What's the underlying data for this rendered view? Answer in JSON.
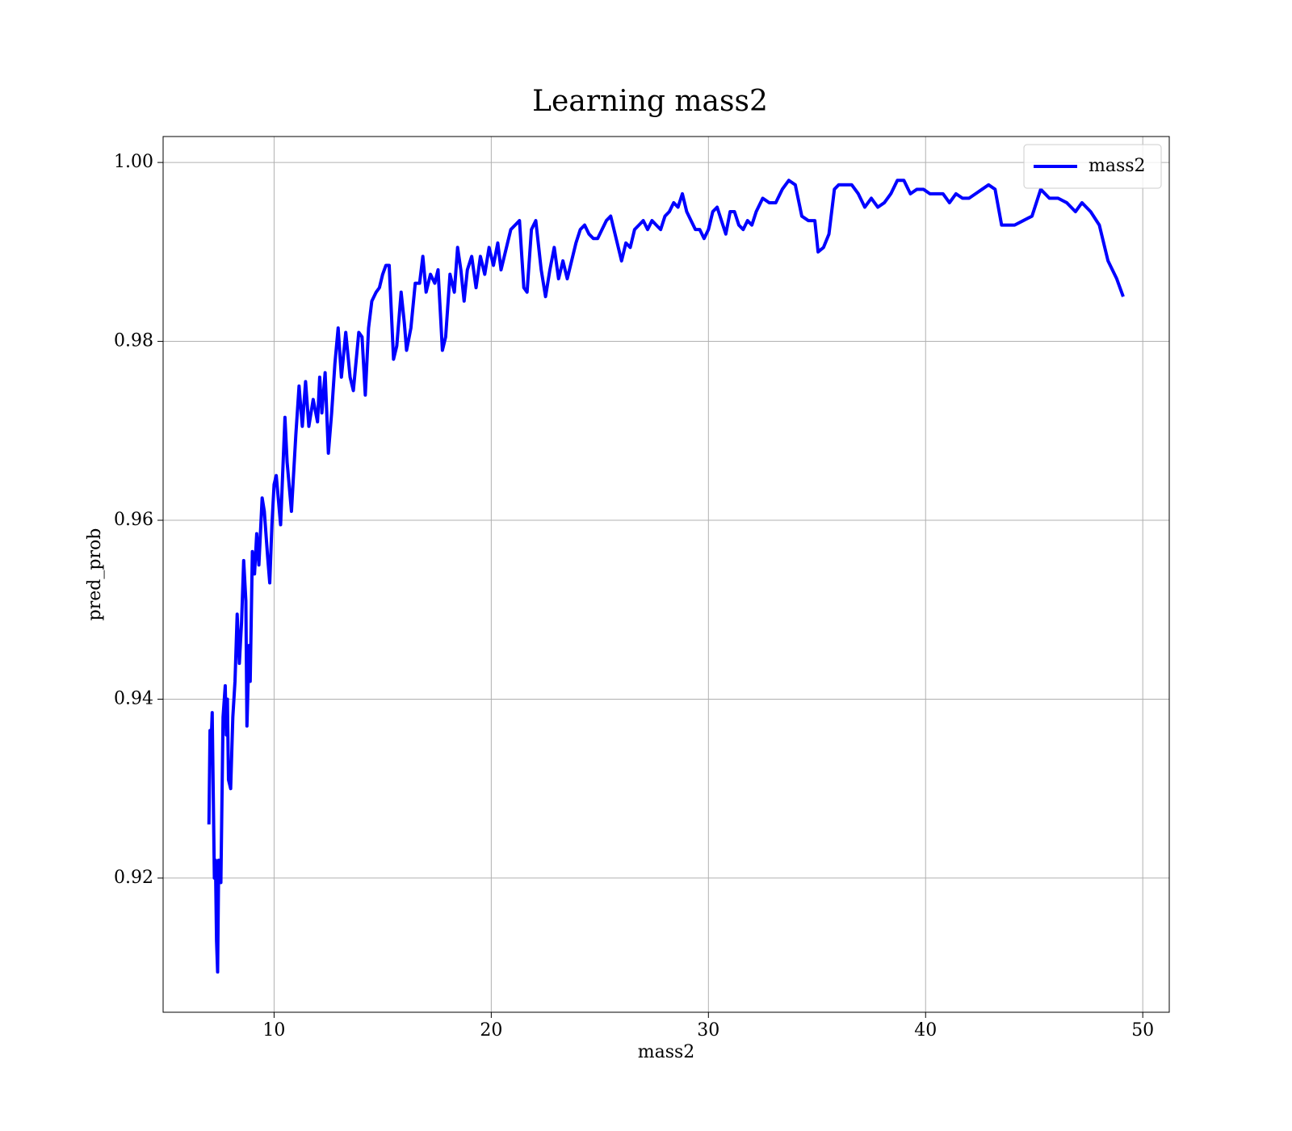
{
  "chart_data": {
    "type": "line",
    "title": "Learning mass2",
    "xlabel": "mass2",
    "ylabel": "pred_prob",
    "xlim": [
      4.89,
      51.22
    ],
    "ylim": [
      0.905,
      1.0029
    ],
    "xticks": [
      10,
      20,
      30,
      40,
      50
    ],
    "yticks": [
      {
        "value": 0.92,
        "label": "0.92"
      },
      {
        "value": 0.94,
        "label": "0.94"
      },
      {
        "value": 0.96,
        "label": "0.96"
      },
      {
        "value": 0.98,
        "label": "0.98"
      },
      {
        "value": 1.0,
        "label": "1.00"
      }
    ],
    "grid": true,
    "legend": "upper right",
    "x": [
      7.0,
      7.05,
      7.1,
      7.15,
      7.25,
      7.3,
      7.35,
      7.4,
      7.45,
      7.55,
      7.65,
      7.75,
      7.8,
      7.85,
      7.9,
      8.0,
      8.1,
      8.2,
      8.3,
      8.4,
      8.5,
      8.6,
      8.7,
      8.75,
      8.85,
      8.9,
      9.0,
      9.1,
      9.2,
      9.3,
      9.45,
      9.55,
      9.7,
      9.8,
      9.9,
      10.0,
      10.1,
      10.3,
      10.5,
      10.6,
      10.8,
      11.0,
      11.15,
      11.3,
      11.45,
      11.6,
      11.8,
      12.0,
      12.1,
      12.2,
      12.35,
      12.5,
      12.65,
      12.8,
      12.95,
      13.1,
      13.3,
      13.5,
      13.65,
      13.9,
      14.05,
      14.2,
      14.35,
      14.5,
      14.7,
      14.85,
      15.0,
      15.15,
      15.3,
      15.5,
      15.65,
      15.85,
      16.0,
      16.1,
      16.3,
      16.5,
      16.7,
      16.85,
      17.0,
      17.2,
      17.4,
      17.55,
      17.75,
      17.9,
      18.1,
      18.3,
      18.45,
      18.6,
      18.75,
      18.9,
      19.1,
      19.3,
      19.5,
      19.7,
      19.9,
      20.1,
      20.3,
      20.45,
      20.6,
      20.9,
      21.1,
      21.3,
      21.5,
      21.65,
      21.85,
      22.05,
      22.3,
      22.5,
      22.7,
      22.9,
      23.1,
      23.3,
      23.5,
      23.7,
      23.9,
      24.1,
      24.3,
      24.5,
      24.7,
      24.9,
      25.1,
      25.3,
      25.5,
      25.65,
      25.85,
      26.0,
      26.2,
      26.4,
      26.6,
      26.8,
      27.0,
      27.2,
      27.4,
      27.6,
      27.8,
      28.0,
      28.2,
      28.4,
      28.6,
      28.8,
      29.0,
      29.2,
      29.4,
      29.6,
      29.8,
      30.0,
      30.2,
      30.4,
      30.6,
      30.8,
      31.0,
      31.2,
      31.4,
      31.6,
      31.8,
      32.0,
      32.2,
      32.5,
      32.8,
      33.1,
      33.4,
      33.7,
      34.0,
      34.3,
      34.6,
      34.9,
      35.05,
      35.3,
      35.55,
      35.8,
      36.0,
      36.3,
      36.6,
      36.9,
      37.2,
      37.5,
      37.8,
      38.1,
      38.4,
      38.7,
      39.0,
      39.3,
      39.6,
      39.9,
      40.2,
      40.5,
      40.8,
      41.1,
      41.4,
      41.7,
      42.0,
      42.3,
      42.6,
      42.9,
      43.2,
      43.5,
      43.8,
      44.1,
      44.5,
      44.9,
      45.3,
      45.7,
      46.1,
      46.5,
      46.9,
      47.2,
      47.6,
      48.0,
      48.4,
      48.8,
      49.1
    ],
    "series": [
      {
        "name": "mass2",
        "color": "#0000ff",
        "values": [
          0.926,
          0.9365,
          0.935,
          0.9385,
          0.92,
          0.922,
          0.913,
          0.9095,
          0.922,
          0.9195,
          0.938,
          0.9415,
          0.936,
          0.94,
          0.931,
          0.93,
          0.938,
          0.942,
          0.9495,
          0.944,
          0.9485,
          0.9555,
          0.951,
          0.937,
          0.946,
          0.942,
          0.9565,
          0.954,
          0.9585,
          0.955,
          0.9625,
          0.961,
          0.956,
          0.953,
          0.9595,
          0.964,
          0.965,
          0.9595,
          0.9715,
          0.9665,
          0.961,
          0.9695,
          0.975,
          0.9705,
          0.9755,
          0.9705,
          0.9735,
          0.971,
          0.976,
          0.972,
          0.9765,
          0.9675,
          0.972,
          0.9775,
          0.9815,
          0.976,
          0.981,
          0.976,
          0.9745,
          0.981,
          0.9805,
          0.974,
          0.9815,
          0.9845,
          0.9855,
          0.986,
          0.9875,
          0.9885,
          0.9885,
          0.978,
          0.9795,
          0.9855,
          0.982,
          0.979,
          0.9815,
          0.9865,
          0.9865,
          0.9895,
          0.9855,
          0.9875,
          0.9865,
          0.988,
          0.979,
          0.9805,
          0.9875,
          0.9855,
          0.9905,
          0.988,
          0.9845,
          0.988,
          0.9895,
          0.986,
          0.9895,
          0.9875,
          0.9905,
          0.9885,
          0.991,
          0.988,
          0.9895,
          0.9925,
          0.993,
          0.9935,
          0.986,
          0.9855,
          0.9925,
          0.9935,
          0.988,
          0.985,
          0.988,
          0.9905,
          0.987,
          0.989,
          0.987,
          0.989,
          0.991,
          0.9925,
          0.993,
          0.992,
          0.9915,
          0.9915,
          0.9925,
          0.9935,
          0.994,
          0.9925,
          0.9905,
          0.989,
          0.991,
          0.9905,
          0.9925,
          0.993,
          0.9935,
          0.9925,
          0.9935,
          0.993,
          0.9925,
          0.994,
          0.9945,
          0.9955,
          0.995,
          0.9965,
          0.9945,
          0.9935,
          0.9925,
          0.9925,
          0.9915,
          0.9925,
          0.9945,
          0.995,
          0.9935,
          0.992,
          0.9945,
          0.9945,
          0.993,
          0.9925,
          0.9935,
          0.993,
          0.9945,
          0.996,
          0.9955,
          0.9955,
          0.997,
          0.998,
          0.9975,
          0.994,
          0.9935,
          0.9935,
          0.99,
          0.9905,
          0.992,
          0.997,
          0.9975,
          0.9975,
          0.9975,
          0.9965,
          0.995,
          0.996,
          0.995,
          0.9955,
          0.9965,
          0.998,
          0.998,
          0.9965,
          0.997,
          0.997,
          0.9965,
          0.9965,
          0.9965,
          0.9955,
          0.9965,
          0.996,
          0.996,
          0.9965,
          0.997,
          0.9975,
          0.997,
          0.993,
          0.993,
          0.993,
          0.9935,
          0.994,
          0.997,
          0.996,
          0.996,
          0.9955,
          0.9945,
          0.9955,
          0.9945,
          0.993,
          0.989,
          0.987,
          0.985
        ]
      }
    ]
  }
}
